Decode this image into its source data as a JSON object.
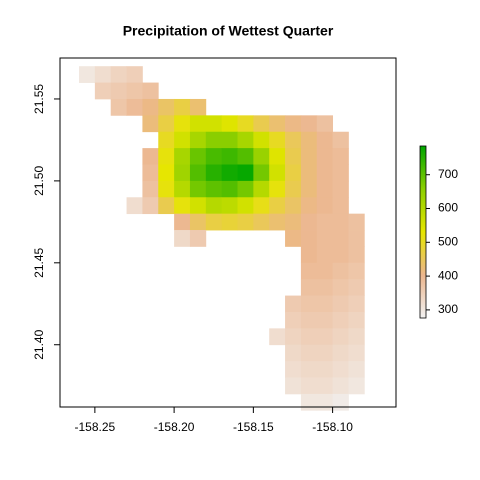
{
  "chart_data": {
    "type": "raster",
    "title": "Precipitation of Wettest Quarter",
    "xlim": [
      -158.272,
      -158.06
    ],
    "ylim": [
      21.362,
      21.575
    ],
    "xticks": [
      {
        "value": -158.25,
        "label": "-158.25"
      },
      {
        "value": -158.2,
        "label": "-158.20"
      },
      {
        "value": -158.15,
        "label": "-158.15"
      },
      {
        "value": -158.1,
        "label": "-158.10"
      }
    ],
    "yticks": [
      {
        "value": 21.4,
        "label": "21.40"
      },
      {
        "value": 21.45,
        "label": "21.45"
      },
      {
        "value": 21.5,
        "label": "21.50"
      },
      {
        "value": 21.55,
        "label": "21.55"
      }
    ],
    "zlim": [
      276,
      785
    ],
    "zticks": [
      300,
      400,
      500,
      600,
      700
    ],
    "colors": [
      "#F2F2F2",
      "#ECB68E",
      "#E6E600",
      "#8CCF00",
      "#00A600"
    ],
    "cell_size": 0.01,
    "x": [
      -158.265,
      -158.255,
      -158.245,
      -158.235,
      -158.225,
      -158.215,
      -158.205,
      -158.195,
      -158.185,
      -158.175,
      -158.165,
      -158.155,
      -158.145,
      -158.135,
      -158.125,
      -158.115,
      -158.105,
      -158.095,
      -158.085,
      -158.075,
      -158.065
    ],
    "y": [
      21.565,
      21.555,
      21.545,
      21.535,
      21.525,
      21.515,
      21.505,
      21.495,
      21.485,
      21.475,
      21.465,
      21.455,
      21.445,
      21.435,
      21.425,
      21.415,
      21.405,
      21.395,
      21.385,
      21.375,
      21.365
    ],
    "values": [
      [
        null,
        300,
        320,
        340,
        350,
        null,
        null,
        null,
        null,
        null,
        null,
        null,
        null,
        null,
        null,
        null,
        null,
        null,
        null,
        null,
        null
      ],
      [
        null,
        null,
        350,
        360,
        370,
        380,
        null,
        null,
        null,
        null,
        null,
        null,
        null,
        null,
        null,
        null,
        null,
        null,
        null,
        null,
        null
      ],
      [
        null,
        null,
        null,
        370,
        390,
        410,
        440,
        470,
        430,
        null,
        null,
        null,
        null,
        null,
        null,
        null,
        null,
        null,
        null,
        null,
        null
      ],
      [
        null,
        null,
        null,
        null,
        null,
        420,
        470,
        520,
        560,
        560,
        540,
        500,
        460,
        430,
        410,
        400,
        380,
        null,
        null,
        null,
        null
      ],
      [
        null,
        null,
        null,
        null,
        null,
        null,
        500,
        560,
        620,
        660,
        660,
        620,
        560,
        500,
        450,
        420,
        400,
        380,
        null,
        null,
        null
      ],
      [
        null,
        null,
        null,
        null,
        null,
        400,
        520,
        620,
        690,
        720,
        730,
        710,
        640,
        540,
        460,
        420,
        400,
        390,
        null,
        null,
        null
      ],
      [
        null,
        null,
        null,
        null,
        null,
        390,
        530,
        630,
        710,
        750,
        770,
        780,
        680,
        560,
        470,
        420,
        400,
        390,
        null,
        null,
        null
      ],
      [
        null,
        null,
        null,
        null,
        null,
        380,
        520,
        600,
        680,
        700,
        710,
        680,
        600,
        520,
        460,
        420,
        400,
        390,
        null,
        null,
        null
      ],
      [
        null,
        null,
        null,
        null,
        320,
        360,
        460,
        520,
        560,
        600,
        590,
        560,
        510,
        470,
        440,
        410,
        400,
        390,
        null,
        null,
        null
      ],
      [
        null,
        null,
        null,
        null,
        null,
        null,
        null,
        400,
        440,
        470,
        480,
        470,
        450,
        430,
        420,
        400,
        390,
        390,
        380,
        null,
        null
      ],
      [
        null,
        null,
        null,
        null,
        null,
        null,
        null,
        330,
        360,
        null,
        null,
        null,
        null,
        null,
        410,
        400,
        390,
        390,
        380,
        null,
        null
      ],
      [
        null,
        null,
        null,
        null,
        null,
        null,
        null,
        null,
        null,
        null,
        null,
        null,
        null,
        null,
        null,
        400,
        390,
        390,
        380,
        null,
        null
      ],
      [
        null,
        null,
        null,
        null,
        null,
        null,
        null,
        null,
        null,
        null,
        null,
        null,
        null,
        null,
        null,
        390,
        390,
        380,
        370,
        null,
        null
      ],
      [
        null,
        null,
        null,
        null,
        null,
        null,
        null,
        null,
        null,
        null,
        null,
        null,
        null,
        null,
        null,
        380,
        380,
        370,
        360,
        null,
        null
      ],
      [
        null,
        null,
        null,
        null,
        null,
        null,
        null,
        null,
        null,
        null,
        null,
        null,
        null,
        null,
        360,
        370,
        370,
        360,
        350,
        null,
        null
      ],
      [
        null,
        null,
        null,
        null,
        null,
        null,
        null,
        null,
        null,
        null,
        null,
        null,
        null,
        null,
        350,
        360,
        360,
        350,
        340,
        null,
        null
      ],
      [
        null,
        null,
        null,
        null,
        null,
        null,
        null,
        null,
        null,
        null,
        null,
        null,
        null,
        320,
        340,
        350,
        350,
        340,
        330,
        null,
        null
      ],
      [
        null,
        null,
        null,
        null,
        null,
        null,
        null,
        null,
        null,
        null,
        null,
        null,
        null,
        null,
        330,
        340,
        340,
        330,
        320,
        null,
        null
      ],
      [
        null,
        null,
        null,
        null,
        null,
        null,
        null,
        null,
        null,
        null,
        null,
        null,
        null,
        null,
        320,
        330,
        330,
        320,
        310,
        null,
        null
      ],
      [
        null,
        null,
        null,
        null,
        null,
        null,
        null,
        null,
        null,
        null,
        null,
        null,
        null,
        null,
        310,
        320,
        320,
        310,
        300,
        null,
        null
      ],
      [
        null,
        null,
        null,
        null,
        null,
        null,
        null,
        null,
        null,
        null,
        null,
        null,
        null,
        null,
        null,
        300,
        300,
        290,
        null,
        null,
        null
      ]
    ]
  }
}
